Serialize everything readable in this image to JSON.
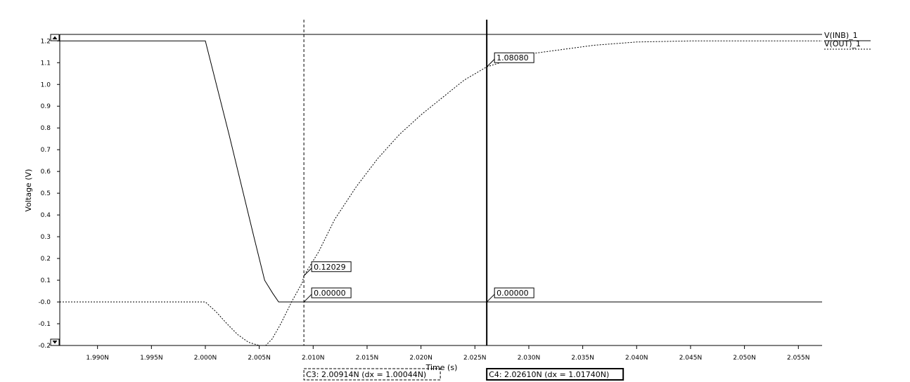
{
  "chart_data": {
    "type": "line",
    "xlabel": "Time (s)",
    "ylabel": "Voltage (V)",
    "xlim": [
      1.9865,
      2.0572
    ],
    "ylim": [
      -0.2,
      1.23
    ],
    "x_ticks": [
      1.99,
      1.995,
      2.0,
      2.005,
      2.01,
      2.015,
      2.02,
      2.025,
      2.03,
      2.035,
      2.04,
      2.045,
      2.05,
      2.055
    ],
    "x_tick_labels": [
      "1.990N",
      "1.995N",
      "2.000N",
      "2.005N",
      "2.010N",
      "2.015N",
      "2.020N",
      "2.025N",
      "2.030N",
      "2.035N",
      "2.040N",
      "2.045N",
      "2.050N",
      "2.055N"
    ],
    "y_ticks": [
      1.2,
      1.1,
      1.0,
      0.9,
      0.8,
      0.7,
      0.6,
      0.5,
      0.4,
      0.3,
      0.2,
      0.1,
      0.0,
      -0.1,
      -0.2
    ],
    "y_tick_labels": [
      "1.2",
      "1.1",
      "1.0",
      "0.9",
      "0.8",
      "0.7",
      "0.6",
      "0.5",
      "0.4",
      "0.3",
      "0.2",
      "0.1",
      "-0.0",
      "-0.1",
      "-0.2"
    ],
    "grid": false,
    "series": [
      {
        "name": "V(INB)_1",
        "style": "solid",
        "color": "#000000",
        "x": [
          1.9865,
          2.0,
          2.0022,
          2.0045,
          2.0055,
          2.00625,
          2.0068,
          2.0572
        ],
        "y": [
          1.2,
          1.2,
          0.77,
          0.3,
          0.1,
          0.04,
          0.0,
          0.0
        ]
      },
      {
        "name": "V(OUT)_1",
        "style": "dashed",
        "color": "#000000",
        "x": [
          1.9865,
          2.0,
          2.001,
          2.002,
          2.003,
          2.004,
          2.005,
          2.0056,
          2.0062,
          2.007,
          2.008,
          2.009,
          2.00914,
          2.0105,
          2.012,
          2.014,
          2.016,
          2.018,
          2.02,
          2.022,
          2.024,
          2.0261,
          2.028,
          2.03,
          2.033,
          2.036,
          2.04,
          2.045,
          2.05,
          2.055,
          2.0572
        ],
        "y": [
          0.0,
          0.0,
          -0.045,
          -0.1,
          -0.15,
          -0.185,
          -0.2,
          -0.2,
          -0.17,
          -0.1,
          0.0,
          0.09,
          0.12029,
          0.23,
          0.38,
          0.53,
          0.66,
          0.77,
          0.86,
          0.94,
          1.02,
          1.0808,
          1.11,
          1.14,
          1.16,
          1.18,
          1.195,
          1.2,
          1.2,
          1.2,
          1.2
        ]
      }
    ],
    "cursors": [
      {
        "name": "C3",
        "x": 2.00914,
        "style": "dashed",
        "label": "C3: 2.00914N (dx = 1.00044N)",
        "markers": [
          {
            "y": 0.12029,
            "text": "0.12029"
          },
          {
            "y": 0.0,
            "text": "0.00000"
          }
        ]
      },
      {
        "name": "C4",
        "x": 2.0261,
        "style": "solid",
        "label": "C4: 2.02610N (dx = 1.01740N)",
        "markers": [
          {
            "y": 1.0808,
            "text": "1.08080"
          },
          {
            "y": 0.0,
            "text": "0.00000"
          }
        ]
      }
    ],
    "legend": {
      "position": "top-right",
      "entries": [
        "V(INB)_1",
        "V(OUT)_1"
      ]
    }
  }
}
